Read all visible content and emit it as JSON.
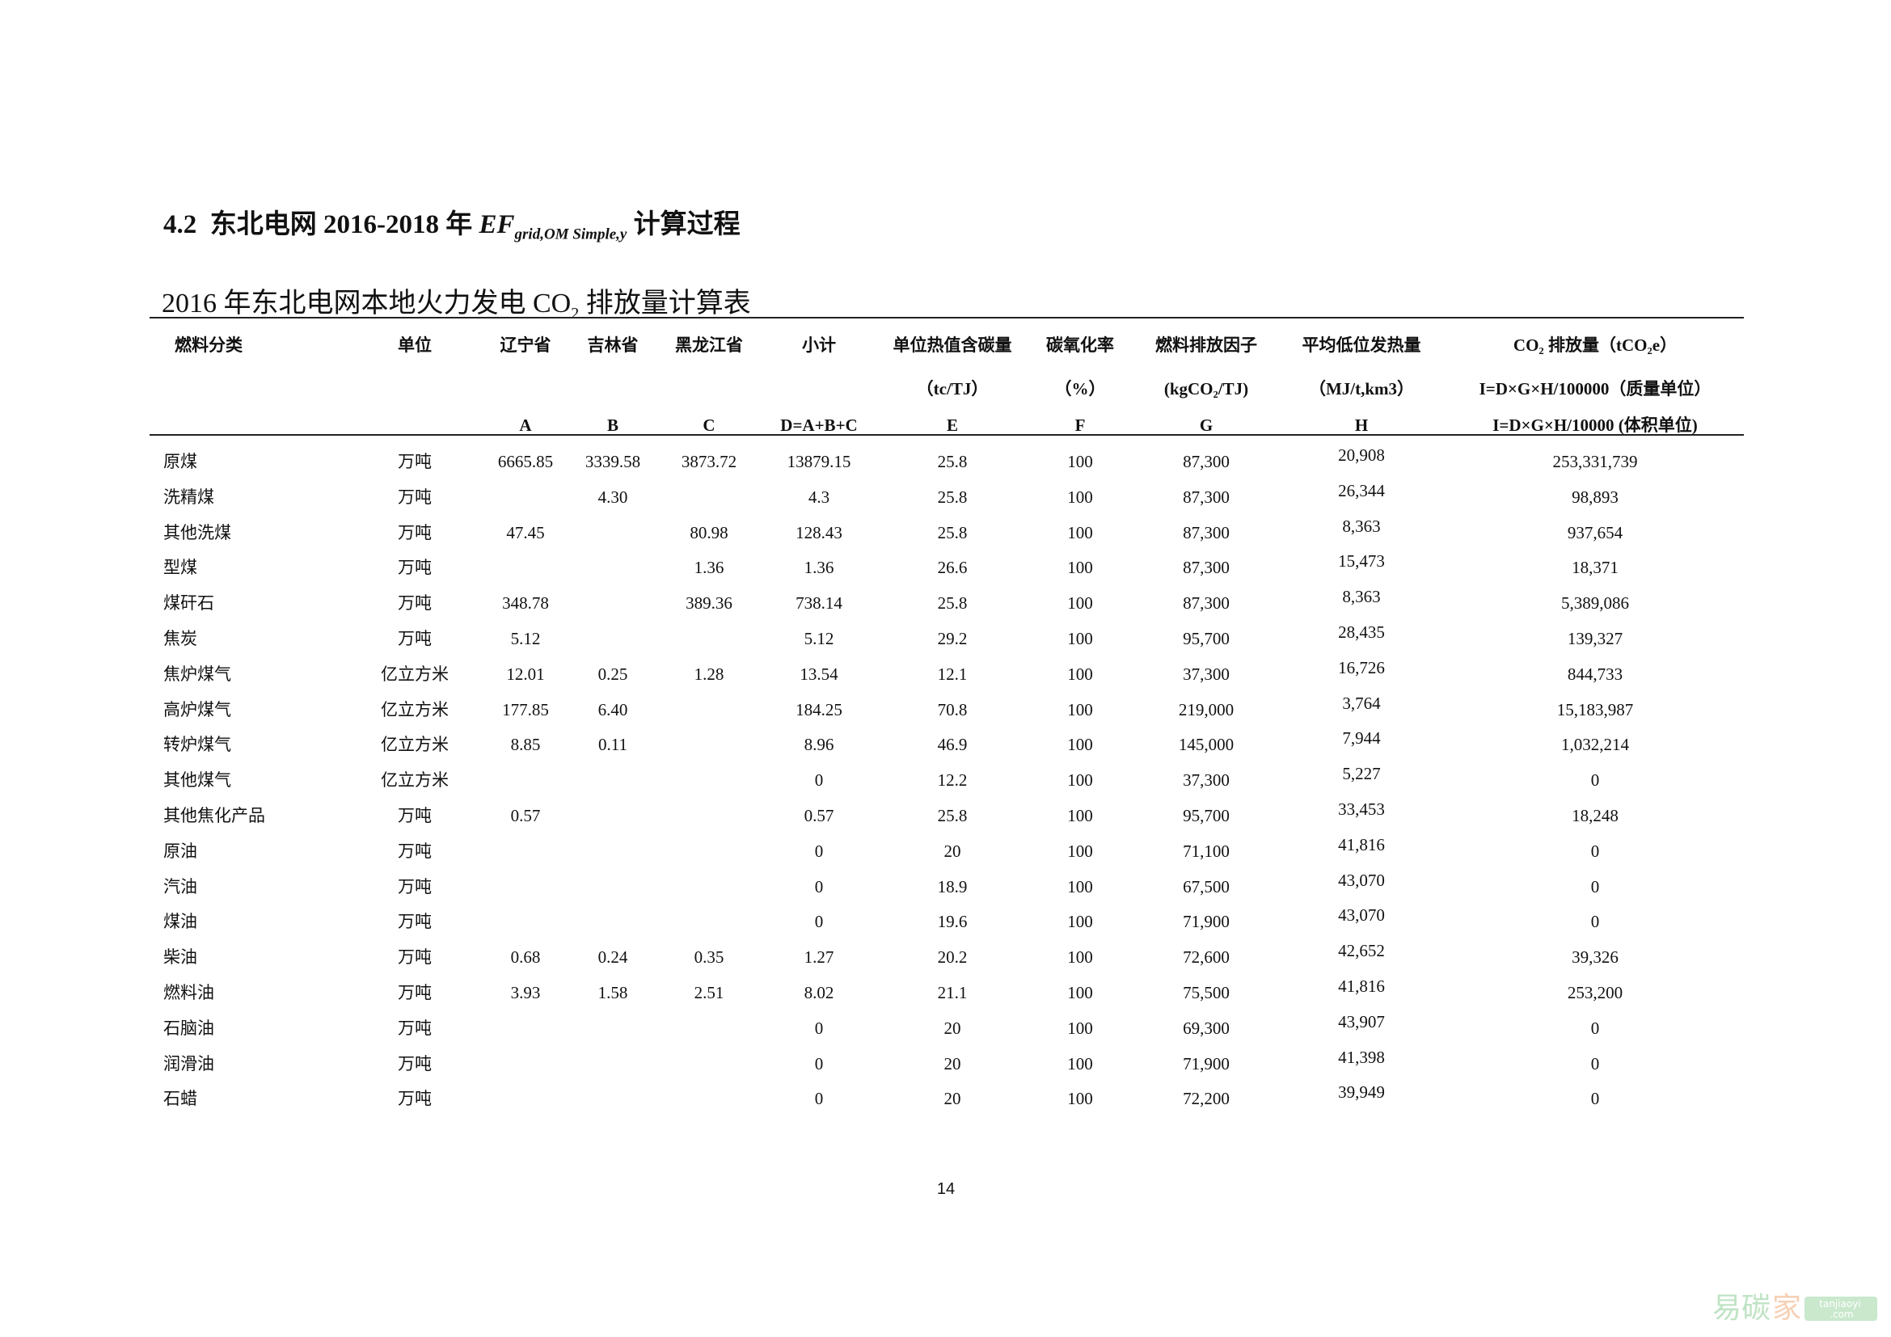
{
  "heading": {
    "number": "4.2",
    "text_before": "东北电网 2016-2018 年",
    "ef": "EF",
    "ef_sub": "grid,OM Simple,y",
    "text_after": "计算过程"
  },
  "subtitle": {
    "before": "2016 年东北电网本地火力发电 CO",
    "sub": "2",
    "after": "排放量计算表"
  },
  "table": {
    "headers": [
      [
        "燃料分类",
        "",
        ""
      ],
      [
        "单位",
        "",
        ""
      ],
      [
        "辽宁省",
        "",
        "A"
      ],
      [
        "吉林省",
        "",
        "B"
      ],
      [
        "黑龙江省",
        "",
        "C"
      ],
      [
        "小计",
        "",
        "D=A+B+C"
      ],
      [
        "单位热值含碳量",
        "（tc/TJ）",
        "E"
      ],
      [
        "碳氧化率",
        "（%）",
        "F"
      ],
      [
        "燃料排放因子",
        "(kgCO₂/TJ)",
        "G"
      ],
      [
        "平均低位发热量",
        "（MJ/t,km3）",
        "H"
      ],
      [
        "CO₂ 排放量（tCO₂e）",
        "I=D×G×H/100000（质量单位）",
        "I=D×G×H/10000 (体积单位)"
      ]
    ],
    "rows": [
      [
        "原煤",
        "万吨",
        "6665.85",
        "3339.58",
        "3873.72",
        "13879.15",
        "25.8",
        "100",
        "87,300",
        "20,908",
        "253,331,739"
      ],
      [
        "洗精煤",
        "万吨",
        "",
        "4.30",
        "",
        "4.3",
        "25.8",
        "100",
        "87,300",
        "26,344",
        "98,893"
      ],
      [
        "其他洗煤",
        "万吨",
        "47.45",
        "",
        "80.98",
        "128.43",
        "25.8",
        "100",
        "87,300",
        "8,363",
        "937,654"
      ],
      [
        "型煤",
        "万吨",
        "",
        "",
        "1.36",
        "1.36",
        "26.6",
        "100",
        "87,300",
        "15,473",
        "18,371"
      ],
      [
        "煤矸石",
        "万吨",
        "348.78",
        "",
        "389.36",
        "738.14",
        "25.8",
        "100",
        "87,300",
        "8,363",
        "5,389,086"
      ],
      [
        "焦炭",
        "万吨",
        "5.12",
        "",
        "",
        "5.12",
        "29.2",
        "100",
        "95,700",
        "28,435",
        "139,327"
      ],
      [
        "焦炉煤气",
        "亿立方米",
        "12.01",
        "0.25",
        "1.28",
        "13.54",
        "12.1",
        "100",
        "37,300",
        "16,726",
        "844,733"
      ],
      [
        "高炉煤气",
        "亿立方米",
        "177.85",
        "6.40",
        "",
        "184.25",
        "70.8",
        "100",
        "219,000",
        "3,764",
        "15,183,987"
      ],
      [
        "转炉煤气",
        "亿立方米",
        "8.85",
        "0.11",
        "",
        "8.96",
        "46.9",
        "100",
        "145,000",
        "7,944",
        "1,032,214"
      ],
      [
        "其他煤气",
        "亿立方米",
        "",
        "",
        "",
        "0",
        "12.2",
        "100",
        "37,300",
        "5,227",
        "0"
      ],
      [
        "其他焦化产品",
        "万吨",
        "0.57",
        "",
        "",
        "0.57",
        "25.8",
        "100",
        "95,700",
        "33,453",
        "18,248"
      ],
      [
        "原油",
        "万吨",
        "",
        "",
        "",
        "0",
        "20",
        "100",
        "71,100",
        "41,816",
        "0"
      ],
      [
        "汽油",
        "万吨",
        "",
        "",
        "",
        "0",
        "18.9",
        "100",
        "67,500",
        "43,070",
        "0"
      ],
      [
        "煤油",
        "万吨",
        "",
        "",
        "",
        "0",
        "19.6",
        "100",
        "71,900",
        "43,070",
        "0"
      ],
      [
        "柴油",
        "万吨",
        "0.68",
        "0.24",
        "0.35",
        "1.27",
        "20.2",
        "100",
        "72,600",
        "42,652",
        "39,326"
      ],
      [
        "燃料油",
        "万吨",
        "3.93",
        "1.58",
        "2.51",
        "8.02",
        "21.1",
        "100",
        "75,500",
        "41,816",
        "253,200"
      ],
      [
        "石脑油",
        "万吨",
        "",
        "",
        "",
        "0",
        "20",
        "100",
        "69,300",
        "43,907",
        "0"
      ],
      [
        "润滑油",
        "万吨",
        "",
        "",
        "",
        "0",
        "20",
        "100",
        "71,900",
        "41,398",
        "0"
      ],
      [
        "石蜡",
        "万吨",
        "",
        "",
        "",
        "0",
        "20",
        "100",
        "72,200",
        "39,949",
        "0"
      ]
    ]
  },
  "page_number": "14",
  "watermark": {
    "cn": "易碳家",
    "en1": "tanjiaoyi",
    "en2": ".com",
    "green": "#bfe3c4",
    "orange": "#f6d0b4"
  }
}
